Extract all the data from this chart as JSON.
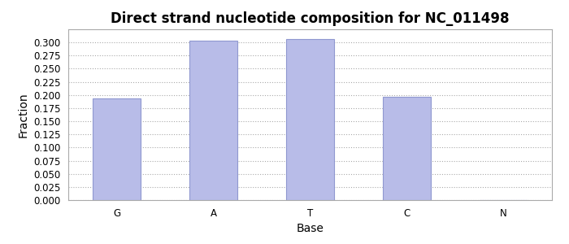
{
  "title": "Direct strand nucleotide composition for NC_011498",
  "categories": [
    "G",
    "A",
    "T",
    "C",
    "N"
  ],
  "values": [
    0.194,
    0.304,
    0.306,
    0.196,
    0.0
  ],
  "bar_color": "#b8bce8",
  "bar_edgecolor": "#9098d0",
  "xlabel": "Base",
  "ylabel": "Fraction",
  "ylim": [
    0.0,
    0.325
  ],
  "yticks": [
    0.0,
    0.025,
    0.05,
    0.075,
    0.1,
    0.125,
    0.15,
    0.175,
    0.2,
    0.225,
    0.25,
    0.275,
    0.3
  ],
  "title_fontsize": 12,
  "label_fontsize": 10,
  "tick_fontsize": 8.5,
  "background_color": "#ffffff",
  "grid_color": "#aaaaaa",
  "spine_color": "#aaaaaa"
}
